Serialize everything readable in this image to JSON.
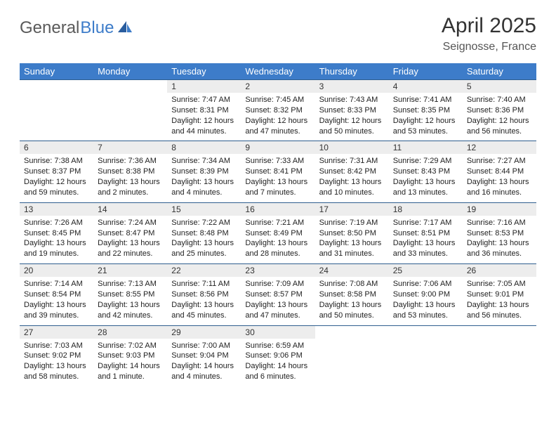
{
  "logo": {
    "part1": "General",
    "part2": "Blue"
  },
  "title": "April 2025",
  "location": "Seignosse, France",
  "colors": {
    "header_bg": "#3d7cc9",
    "header_text": "#ffffff",
    "daynum_bg": "#ededed",
    "row_border": "#2f5e8f",
    "page_bg": "#ffffff",
    "body_text": "#222222",
    "logo_gray": "#5a5a5a",
    "logo_blue": "#3d7cc9"
  },
  "typography": {
    "title_fontsize": 30,
    "location_fontsize": 16,
    "header_fontsize": 13,
    "daynum_fontsize": 12,
    "cell_fontsize": 11
  },
  "weekdays": [
    "Sunday",
    "Monday",
    "Tuesday",
    "Wednesday",
    "Thursday",
    "Friday",
    "Saturday"
  ],
  "weeks": [
    [
      null,
      null,
      {
        "n": "1",
        "sr": "Sunrise: 7:47 AM",
        "ss": "Sunset: 8:31 PM",
        "dl": "Daylight: 12 hours and 44 minutes."
      },
      {
        "n": "2",
        "sr": "Sunrise: 7:45 AM",
        "ss": "Sunset: 8:32 PM",
        "dl": "Daylight: 12 hours and 47 minutes."
      },
      {
        "n": "3",
        "sr": "Sunrise: 7:43 AM",
        "ss": "Sunset: 8:33 PM",
        "dl": "Daylight: 12 hours and 50 minutes."
      },
      {
        "n": "4",
        "sr": "Sunrise: 7:41 AM",
        "ss": "Sunset: 8:35 PM",
        "dl": "Daylight: 12 hours and 53 minutes."
      },
      {
        "n": "5",
        "sr": "Sunrise: 7:40 AM",
        "ss": "Sunset: 8:36 PM",
        "dl": "Daylight: 12 hours and 56 minutes."
      }
    ],
    [
      {
        "n": "6",
        "sr": "Sunrise: 7:38 AM",
        "ss": "Sunset: 8:37 PM",
        "dl": "Daylight: 12 hours and 59 minutes."
      },
      {
        "n": "7",
        "sr": "Sunrise: 7:36 AM",
        "ss": "Sunset: 8:38 PM",
        "dl": "Daylight: 13 hours and 2 minutes."
      },
      {
        "n": "8",
        "sr": "Sunrise: 7:34 AM",
        "ss": "Sunset: 8:39 PM",
        "dl": "Daylight: 13 hours and 4 minutes."
      },
      {
        "n": "9",
        "sr": "Sunrise: 7:33 AM",
        "ss": "Sunset: 8:41 PM",
        "dl": "Daylight: 13 hours and 7 minutes."
      },
      {
        "n": "10",
        "sr": "Sunrise: 7:31 AM",
        "ss": "Sunset: 8:42 PM",
        "dl": "Daylight: 13 hours and 10 minutes."
      },
      {
        "n": "11",
        "sr": "Sunrise: 7:29 AM",
        "ss": "Sunset: 8:43 PM",
        "dl": "Daylight: 13 hours and 13 minutes."
      },
      {
        "n": "12",
        "sr": "Sunrise: 7:27 AM",
        "ss": "Sunset: 8:44 PM",
        "dl": "Daylight: 13 hours and 16 minutes."
      }
    ],
    [
      {
        "n": "13",
        "sr": "Sunrise: 7:26 AM",
        "ss": "Sunset: 8:45 PM",
        "dl": "Daylight: 13 hours and 19 minutes."
      },
      {
        "n": "14",
        "sr": "Sunrise: 7:24 AM",
        "ss": "Sunset: 8:47 PM",
        "dl": "Daylight: 13 hours and 22 minutes."
      },
      {
        "n": "15",
        "sr": "Sunrise: 7:22 AM",
        "ss": "Sunset: 8:48 PM",
        "dl": "Daylight: 13 hours and 25 minutes."
      },
      {
        "n": "16",
        "sr": "Sunrise: 7:21 AM",
        "ss": "Sunset: 8:49 PM",
        "dl": "Daylight: 13 hours and 28 minutes."
      },
      {
        "n": "17",
        "sr": "Sunrise: 7:19 AM",
        "ss": "Sunset: 8:50 PM",
        "dl": "Daylight: 13 hours and 31 minutes."
      },
      {
        "n": "18",
        "sr": "Sunrise: 7:17 AM",
        "ss": "Sunset: 8:51 PM",
        "dl": "Daylight: 13 hours and 33 minutes."
      },
      {
        "n": "19",
        "sr": "Sunrise: 7:16 AM",
        "ss": "Sunset: 8:53 PM",
        "dl": "Daylight: 13 hours and 36 minutes."
      }
    ],
    [
      {
        "n": "20",
        "sr": "Sunrise: 7:14 AM",
        "ss": "Sunset: 8:54 PM",
        "dl": "Daylight: 13 hours and 39 minutes."
      },
      {
        "n": "21",
        "sr": "Sunrise: 7:13 AM",
        "ss": "Sunset: 8:55 PM",
        "dl": "Daylight: 13 hours and 42 minutes."
      },
      {
        "n": "22",
        "sr": "Sunrise: 7:11 AM",
        "ss": "Sunset: 8:56 PM",
        "dl": "Daylight: 13 hours and 45 minutes."
      },
      {
        "n": "23",
        "sr": "Sunrise: 7:09 AM",
        "ss": "Sunset: 8:57 PM",
        "dl": "Daylight: 13 hours and 47 minutes."
      },
      {
        "n": "24",
        "sr": "Sunrise: 7:08 AM",
        "ss": "Sunset: 8:58 PM",
        "dl": "Daylight: 13 hours and 50 minutes."
      },
      {
        "n": "25",
        "sr": "Sunrise: 7:06 AM",
        "ss": "Sunset: 9:00 PM",
        "dl": "Daylight: 13 hours and 53 minutes."
      },
      {
        "n": "26",
        "sr": "Sunrise: 7:05 AM",
        "ss": "Sunset: 9:01 PM",
        "dl": "Daylight: 13 hours and 56 minutes."
      }
    ],
    [
      {
        "n": "27",
        "sr": "Sunrise: 7:03 AM",
        "ss": "Sunset: 9:02 PM",
        "dl": "Daylight: 13 hours and 58 minutes."
      },
      {
        "n": "28",
        "sr": "Sunrise: 7:02 AM",
        "ss": "Sunset: 9:03 PM",
        "dl": "Daylight: 14 hours and 1 minute."
      },
      {
        "n": "29",
        "sr": "Sunrise: 7:00 AM",
        "ss": "Sunset: 9:04 PM",
        "dl": "Daylight: 14 hours and 4 minutes."
      },
      {
        "n": "30",
        "sr": "Sunrise: 6:59 AM",
        "ss": "Sunset: 9:06 PM",
        "dl": "Daylight: 14 hours and 6 minutes."
      },
      null,
      null,
      null
    ]
  ]
}
